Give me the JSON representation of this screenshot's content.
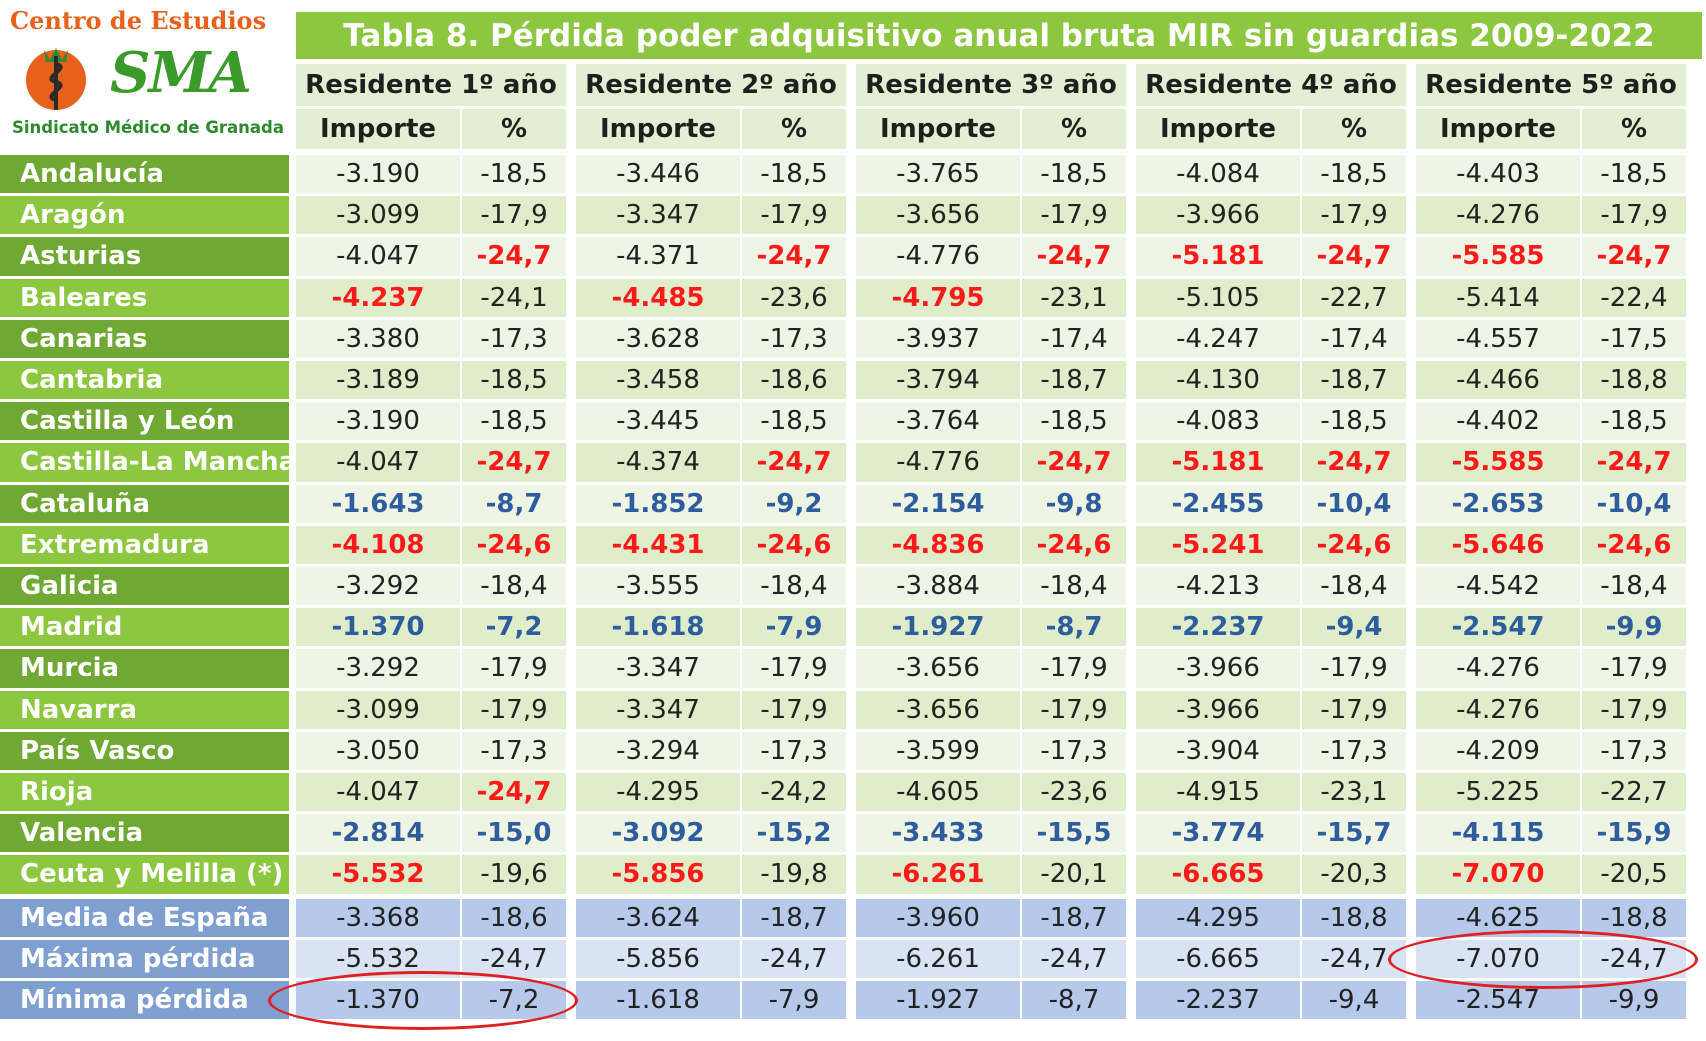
{
  "logo": {
    "top_text": "Centro de Estudios",
    "mark_text": "SMA",
    "bottom_text": "Sindicato Médico de Granada"
  },
  "table": {
    "title": "Tabla 8. Pérdida poder adquisitivo anual bruta MIR sin guardias 2009-2022",
    "columns": [
      "Residente 1º año",
      "Residente 2º año",
      "Residente 3º año",
      "Residente 4º año",
      "Residente 5º año"
    ],
    "subcolumns": [
      "Importe",
      "%"
    ],
    "rows": [
      {
        "region": "Andalucía",
        "values": [
          "-3.190",
          "-18,5",
          "-3.446",
          "-18,5",
          "-3.765",
          "-18,5",
          "-4.084",
          "-18,5",
          "-4.403",
          "-18,5"
        ],
        "styles": [
          "",
          "",
          "",
          "",
          "",
          "",
          "",
          "",
          "",
          ""
        ]
      },
      {
        "region": "Aragón",
        "values": [
          "-3.099",
          "-17,9",
          "-3.347",
          "-17,9",
          "-3.656",
          "-17,9",
          "-3.966",
          "-17,9",
          "-4.276",
          "-17,9"
        ],
        "styles": [
          "",
          "",
          "",
          "",
          "",
          "",
          "",
          "",
          "",
          ""
        ]
      },
      {
        "region": "Asturias",
        "values": [
          "-4.047",
          "-24,7",
          "-4.371",
          "-24,7",
          "-4.776",
          "-24,7",
          "-5.181",
          "-24,7",
          "-5.585",
          "-24,7"
        ],
        "styles": [
          "",
          "red",
          "",
          "red",
          "",
          "red",
          "red",
          "red",
          "red",
          "red"
        ]
      },
      {
        "region": "Baleares",
        "values": [
          "-4.237",
          "-24,1",
          "-4.485",
          "-23,6",
          "-4.795",
          "-23,1",
          "-5.105",
          "-22,7",
          "-5.414",
          "-22,4"
        ],
        "styles": [
          "red",
          "",
          "red",
          "",
          "red",
          "",
          "",
          "",
          "",
          ""
        ]
      },
      {
        "region": "Canarias",
        "values": [
          "-3.380",
          "-17,3",
          "-3.628",
          "-17,3",
          "-3.937",
          "-17,4",
          "-4.247",
          "-17,4",
          "-4.557",
          "-17,5"
        ],
        "styles": [
          "",
          "",
          "",
          "",
          "",
          "",
          "",
          "",
          "",
          ""
        ]
      },
      {
        "region": "Cantabria",
        "values": [
          "-3.189",
          "-18,5",
          "-3.458",
          "-18,6",
          "-3.794",
          "-18,7",
          "-4.130",
          "-18,7",
          "-4.466",
          "-18,8"
        ],
        "styles": [
          "",
          "",
          "",
          "",
          "",
          "",
          "",
          "",
          "",
          ""
        ]
      },
      {
        "region": "Castilla y León",
        "values": [
          "-3.190",
          "-18,5",
          "-3.445",
          "-18,5",
          "-3.764",
          "-18,5",
          "-4.083",
          "-18,5",
          "-4.402",
          "-18,5"
        ],
        "styles": [
          "",
          "",
          "",
          "",
          "",
          "",
          "",
          "",
          "",
          ""
        ]
      },
      {
        "region": "Castilla-La Mancha",
        "values": [
          "-4.047",
          "-24,7",
          "-4.374",
          "-24,7",
          "-4.776",
          "-24,7",
          "-5.181",
          "-24,7",
          "-5.585",
          "-24,7"
        ],
        "styles": [
          "",
          "red",
          "",
          "red",
          "",
          "red",
          "red",
          "red",
          "red",
          "red"
        ]
      },
      {
        "region": "Cataluña",
        "values": [
          "-1.643",
          "-8,7",
          "-1.852",
          "-9,2",
          "-2.154",
          "-9,8",
          "-2.455",
          "-10,4",
          "-2.653",
          "-10,4"
        ],
        "styles": [
          "blue",
          "blue",
          "blue",
          "blue",
          "blue",
          "blue",
          "blue",
          "blue",
          "blue",
          "blue"
        ]
      },
      {
        "region": "Extremadura",
        "values": [
          "-4.108",
          "-24,6",
          "-4.431",
          "-24,6",
          "-4.836",
          "-24,6",
          "-5.241",
          "-24,6",
          "-5.646",
          "-24,6"
        ],
        "styles": [
          "red",
          "red",
          "red",
          "red",
          "red",
          "red",
          "red",
          "red",
          "red",
          "red"
        ]
      },
      {
        "region": "Galicia",
        "values": [
          "-3.292",
          "-18,4",
          "-3.555",
          "-18,4",
          "-3.884",
          "-18,4",
          "-4.213",
          "-18,4",
          "-4.542",
          "-18,4"
        ],
        "styles": [
          "",
          "",
          "",
          "",
          "",
          "",
          "",
          "",
          "",
          ""
        ]
      },
      {
        "region": "Madrid",
        "values": [
          "-1.370",
          "-7,2",
          "-1.618",
          "-7,9",
          "-1.927",
          "-8,7",
          "-2.237",
          "-9,4",
          "-2.547",
          "-9,9"
        ],
        "styles": [
          "blue",
          "blue",
          "blue",
          "blue",
          "blue",
          "blue",
          "blue",
          "blue",
          "blue",
          "blue"
        ]
      },
      {
        "region": "Murcia",
        "values": [
          "-3.292",
          "-17,9",
          "-3.347",
          "-17,9",
          "-3.656",
          "-17,9",
          "-3.966",
          "-17,9",
          "-4.276",
          "-17,9"
        ],
        "styles": [
          "",
          "",
          "",
          "",
          "",
          "",
          "",
          "",
          "",
          ""
        ]
      },
      {
        "region": "Navarra",
        "values": [
          "-3.099",
          "-17,9",
          "-3.347",
          "-17,9",
          "-3.656",
          "-17,9",
          "-3.966",
          "-17,9",
          "-4.276",
          "-17,9"
        ],
        "styles": [
          "",
          "",
          "",
          "",
          "",
          "",
          "",
          "",
          "",
          ""
        ]
      },
      {
        "region": "País Vasco",
        "values": [
          "-3.050",
          "-17,3",
          "-3.294",
          "-17,3",
          "-3.599",
          "-17,3",
          "-3.904",
          "-17,3",
          "-4.209",
          "-17,3"
        ],
        "styles": [
          "",
          "",
          "",
          "",
          "",
          "",
          "",
          "",
          "",
          ""
        ]
      },
      {
        "region": "Rioja",
        "values": [
          "-4.047",
          "-24,7",
          "-4.295",
          "-24,2",
          "-4.605",
          "-23,6",
          "-4.915",
          "-23,1",
          "-5.225",
          "-22,7"
        ],
        "styles": [
          "",
          "red",
          "",
          "",
          "",
          "",
          "",
          "",
          "",
          ""
        ]
      },
      {
        "region": "Valencia",
        "values": [
          "-2.814",
          "-15,0",
          "-3.092",
          "-15,2",
          "-3.433",
          "-15,5",
          "-3.774",
          "-15,7",
          "-4.115",
          "-15,9"
        ],
        "styles": [
          "blue",
          "blue",
          "blue",
          "blue",
          "blue",
          "blue",
          "blue",
          "blue",
          "blue",
          "blue"
        ]
      },
      {
        "region": "Ceuta y Melilla (*)",
        "values": [
          "-5.532",
          "-19,6",
          "-5.856",
          "-19,8",
          "-6.261",
          "-20,1",
          "-6.665",
          "-20,3",
          "-7.070",
          "-20,5"
        ],
        "styles": [
          "red",
          "",
          "red",
          "",
          "red",
          "",
          "red",
          "",
          "red",
          ""
        ]
      }
    ],
    "summary": [
      {
        "region": "Media de España",
        "values": [
          "-3.368",
          "-18,6",
          "-3.624",
          "-18,7",
          "-3.960",
          "-18,7",
          "-4.295",
          "-18,8",
          "-4.625",
          "-18,8"
        ]
      },
      {
        "region": "Máxima pérdida",
        "values": [
          "-5.532",
          "-24,7",
          "-5.856",
          "-24,7",
          "-6.261",
          "-24,7",
          "-6.665",
          "-24,7",
          "-7.070",
          "-24,7"
        ]
      },
      {
        "region": "Mínima pérdida",
        "values": [
          "-1.370",
          "-7,2",
          "-1.618",
          "-7,9",
          "-1.927",
          "-8,7",
          "-2.237",
          "-9,4",
          "-2.547",
          "-9,9"
        ]
      }
    ]
  },
  "highlights": [
    {
      "row": "Máxima pérdida",
      "column": "Residente 5º año"
    },
    {
      "row": "Mínima pérdida",
      "column": "Residente 1º año"
    }
  ]
}
